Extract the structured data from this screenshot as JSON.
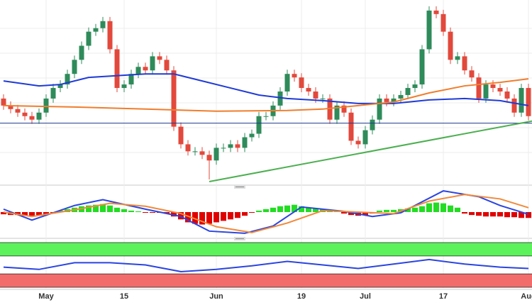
{
  "chart_data": [
    {
      "type": "candlestick",
      "categories": [
        null,
        null,
        null,
        null,
        null,
        null,
        "May",
        null,
        null,
        null,
        null,
        null,
        null,
        null,
        null,
        null,
        null,
        "15",
        null,
        null,
        null,
        null,
        null,
        null,
        null,
        null,
        null,
        null,
        null,
        null,
        "Jun",
        null,
        null,
        null,
        null,
        null,
        null,
        null,
        null,
        null,
        null,
        null,
        "19",
        null,
        null,
        null,
        null,
        null,
        null,
        null,
        null,
        "Jul",
        null,
        null,
        null,
        null,
        null,
        null,
        null,
        null,
        null,
        null,
        "17",
        null,
        null,
        null,
        null,
        null,
        null,
        null,
        null,
        null,
        null,
        null,
        "Aug"
      ],
      "open": [
        120,
        110,
        105,
        100,
        95,
        90,
        100,
        120,
        135,
        140,
        155,
        175,
        195,
        215,
        220,
        230,
        190,
        135,
        140,
        155,
        165,
        160,
        180,
        175,
        160,
        80,
        55,
        45,
        45,
        40,
        32,
        50,
        50,
        55,
        50,
        65,
        70,
        95,
        95,
        110,
        130,
        155,
        150,
        135,
        130,
        120,
        120,
        90,
        110,
        100,
        60,
        55,
        75,
        90,
        120,
        115,
        120,
        125,
        135,
        140,
        190,
        245,
        240,
        215,
        175,
        180,
        160,
        150,
        120,
        140,
        135,
        130,
        120,
        100,
        135
      ],
      "high": [
        126,
        116,
        111,
        106,
        101,
        106,
        126,
        141,
        146,
        161,
        181,
        201,
        221,
        226,
        236,
        236,
        196,
        146,
        161,
        171,
        171,
        186,
        186,
        181,
        166,
        86,
        61,
        51,
        51,
        46,
        56,
        56,
        61,
        61,
        71,
        76,
        101,
        101,
        116,
        136,
        161,
        161,
        156,
        141,
        136,
        126,
        126,
        116,
        116,
        106,
        66,
        81,
        96,
        126,
        126,
        126,
        131,
        141,
        146,
        196,
        251,
        251,
        246,
        221,
        186,
        186,
        166,
        156,
        146,
        146,
        141,
        136,
        126,
        141,
        141
      ],
      "low": [
        104,
        99,
        94,
        89,
        84,
        84,
        94,
        114,
        129,
        134,
        149,
        169,
        189,
        209,
        214,
        184,
        129,
        129,
        134,
        149,
        154,
        154,
        169,
        154,
        74,
        49,
        39,
        39,
        34,
        5,
        26,
        44,
        44,
        44,
        44,
        59,
        64,
        89,
        89,
        104,
        124,
        144,
        129,
        124,
        114,
        114,
        84,
        84,
        94,
        54,
        49,
        49,
        69,
        84,
        109,
        109,
        114,
        119,
        129,
        134,
        184,
        234,
        209,
        169,
        169,
        154,
        144,
        114,
        114,
        129,
        124,
        114,
        94,
        94,
        89
      ],
      "close": [
        110,
        105,
        100,
        95,
        90,
        100,
        120,
        135,
        140,
        155,
        175,
        195,
        215,
        220,
        230,
        190,
        135,
        140,
        155,
        165,
        160,
        180,
        175,
        160,
        80,
        55,
        45,
        45,
        40,
        32,
        50,
        50,
        55,
        50,
        65,
        70,
        95,
        95,
        110,
        130,
        155,
        150,
        135,
        130,
        120,
        120,
        90,
        110,
        100,
        60,
        55,
        75,
        90,
        120,
        115,
        120,
        125,
        135,
        140,
        190,
        245,
        240,
        215,
        175,
        180,
        160,
        150,
        120,
        140,
        135,
        130,
        120,
        100,
        135,
        95
      ],
      "up_color": "#2e8b5a",
      "down_color": "#e2493c",
      "ylim": [
        0,
        260
      ],
      "lines": [
        {
          "color": "#1f3bd6",
          "x": [
            0,
            5,
            8,
            12,
            20,
            24,
            28,
            32,
            36,
            40,
            45,
            50,
            55,
            60,
            65,
            70,
            74
          ],
          "values": [
            145,
            138,
            140,
            150,
            155,
            155,
            145,
            135,
            125,
            120,
            117,
            113,
            113,
            118,
            120,
            117,
            110
          ]
        },
        {
          "color": "#f07d2c",
          "x": [
            0,
            10,
            20,
            30,
            40,
            45,
            50,
            55,
            60,
            65,
            70,
            74
          ],
          "values": [
            110,
            108,
            105,
            102,
            103,
            105,
            110,
            115,
            128,
            138,
            143,
            148
          ]
        },
        {
          "color": "#1e3a8a",
          "x": [
            -0.5,
            74.5
          ],
          "values": [
            85,
            85
          ]
        },
        {
          "color": "#4caf50",
          "x": [
            29,
            74.5
          ],
          "values": [
            2,
            88
          ]
        }
      ]
    },
    {
      "type": "macd",
      "values": [
        -3,
        -4,
        -4,
        -5,
        -5,
        -4,
        -3,
        -2,
        2,
        4,
        6,
        8,
        9,
        10,
        11,
        9,
        6,
        4,
        2,
        1,
        -1,
        -1,
        -1,
        -2,
        -6,
        -10,
        -14,
        -16,
        -17,
        -16,
        -14,
        -12,
        -10,
        -8,
        -5,
        -1,
        2,
        4,
        6,
        8,
        9,
        10,
        8,
        6,
        5,
        4,
        3,
        2,
        -2,
        -4,
        -5,
        -4,
        -2,
        2,
        3,
        3,
        4,
        5,
        6,
        8,
        12,
        13,
        12,
        9,
        6,
        -2,
        -4,
        -5,
        -6,
        -6,
        -6,
        -7,
        -7,
        -8,
        -8
      ],
      "up_color": "#22dd22",
      "down_color": "#e00000",
      "ylim": [
        -32,
        32
      ],
      "lines": [
        {
          "color": "#2b45e0",
          "x": [
            0,
            4,
            10,
            14,
            20,
            25,
            29,
            34,
            38,
            42,
            48,
            52,
            56,
            62,
            67,
            70,
            74
          ],
          "values": [
            4,
            -11,
            9,
            17,
            4,
            -6,
            -26,
            -29,
            -19,
            7,
            1,
            -6,
            -1,
            29,
            21,
            9,
            -3
          ]
        },
        {
          "color": "#f08a3c",
          "x": [
            0,
            4,
            10,
            15,
            20,
            25,
            30,
            35,
            40,
            45,
            50,
            55,
            60,
            65,
            70,
            74
          ],
          "values": [
            0,
            -6,
            3,
            12,
            8,
            -2,
            -20,
            -28,
            -15,
            2,
            0,
            -2,
            15,
            24,
            18,
            6
          ]
        }
      ]
    },
    {
      "type": "rsi",
      "ylim": [
        0,
        100
      ],
      "bands": [
        {
          "range": [
            70,
            100
          ],
          "color": "#5cf25c"
        },
        {
          "range": [
            0,
            30
          ],
          "color": "#f26c6c"
        }
      ],
      "lines": [
        {
          "color": "#2b45e0",
          "x": [
            0,
            5,
            10,
            15,
            20,
            25,
            30,
            35,
            40,
            45,
            50,
            55,
            60,
            65,
            70,
            74
          ],
          "values": [
            45,
            40,
            55,
            55,
            50,
            35,
            40,
            48,
            58,
            50,
            42,
            52,
            62,
            52,
            45,
            42
          ]
        }
      ]
    }
  ]
}
